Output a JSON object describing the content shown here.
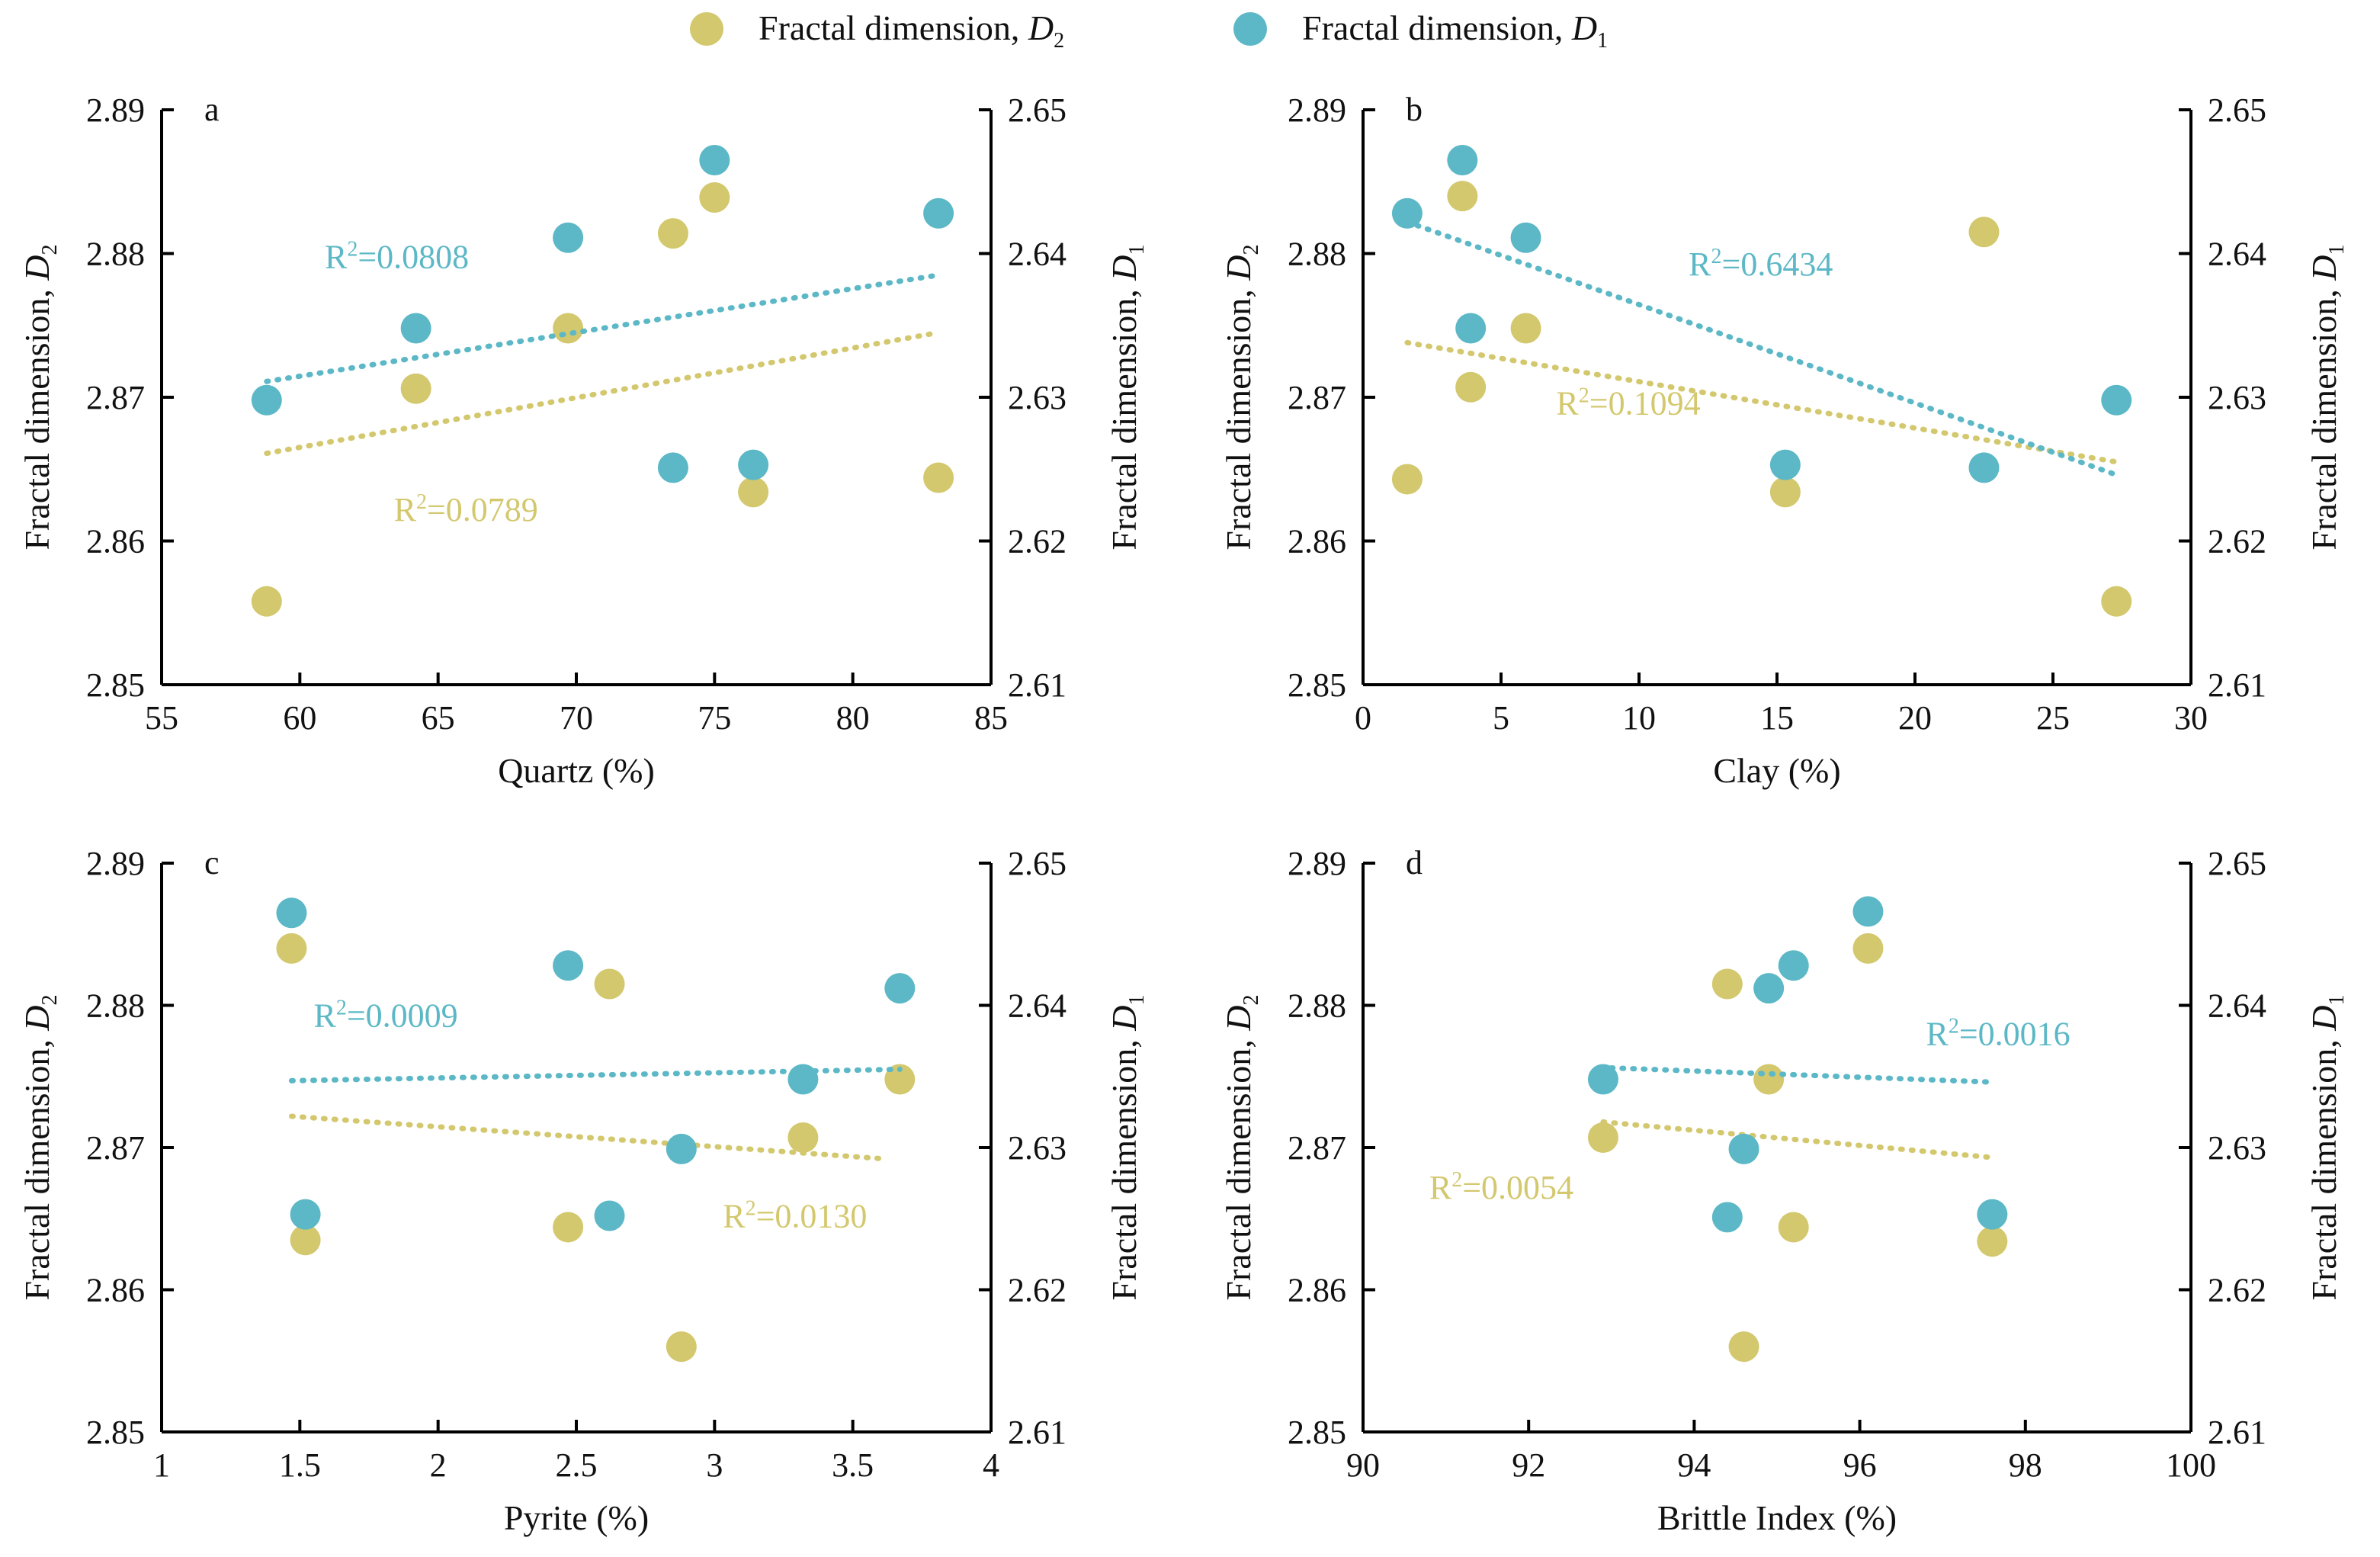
{
  "legend": [
    {
      "label": "Fractal dimension, ",
      "var": "D",
      "sub": "2",
      "color": "#d3c86e"
    },
    {
      "label": "Fractal dimension, ",
      "var": "D",
      "sub": "1",
      "color": "#5cb8c6"
    }
  ],
  "colors": {
    "d2": "#d3c86e",
    "d1": "#5cb8c6"
  },
  "chart_data": [
    {
      "type": "scatter",
      "panel": "a",
      "xlabel": "Quartz (%)",
      "ylabel_left": {
        "text": "Fractal dimension, ",
        "var": "D",
        "sub": "2"
      },
      "ylabel_right": {
        "text": "Fractal dimension, ",
        "var": "D",
        "sub": "1"
      },
      "xlim": [
        55,
        85
      ],
      "xticks": [
        55,
        60,
        65,
        70,
        75,
        80,
        85
      ],
      "ylim_left": [
        2.85,
        2.89
      ],
      "yticks_left": [
        "2.85",
        "2.86",
        "2.87",
        "2.88",
        "2.89"
      ],
      "ylim_right": [
        2.61,
        2.65
      ],
      "yticks_right": [
        "2.61",
        "2.62",
        "2.63",
        "2.64",
        "2.65"
      ],
      "series": [
        {
          "name": "D2",
          "axis": "left",
          "points": [
            [
              58.8,
              2.8558
            ],
            [
              64.2,
              2.8706
            ],
            [
              69.7,
              2.8748
            ],
            [
              73.5,
              2.8814
            ],
            [
              75.0,
              2.8839
            ],
            [
              76.4,
              2.8634
            ],
            [
              83.1,
              2.8644
            ]
          ],
          "trend": [
            [
              58.8,
              2.8661
            ],
            [
              83.1,
              2.8745
            ]
          ],
          "r2": {
            "label": "R",
            "sup": "2",
            "value": "=0.0789",
            "x": 63.4,
            "y": 2.8614
          }
        },
        {
          "name": "D1",
          "axis": "right",
          "points": [
            [
              58.8,
              2.6298
            ],
            [
              64.2,
              2.6348
            ],
            [
              69.7,
              2.6411
            ],
            [
              73.5,
              2.6251
            ],
            [
              75.0,
              2.6465
            ],
            [
              76.4,
              2.6253
            ],
            [
              83.1,
              2.6428
            ]
          ],
          "trend": [
            [
              58.8,
              2.6311
            ],
            [
              83.1,
              2.6385
            ]
          ],
          "r2": {
            "label": "R",
            "sup": "2",
            "value": "=0.0808",
            "x": 60.9,
            "y": 2.639
          }
        }
      ]
    },
    {
      "type": "scatter",
      "panel": "b",
      "xlabel": "Clay (%)",
      "ylabel_left": {
        "text": "Fractal dimension, ",
        "var": "D",
        "sub": "2"
      },
      "ylabel_right": {
        "text": "Fractal dimension, ",
        "var": "D",
        "sub": "1"
      },
      "xlim": [
        0,
        30
      ],
      "xticks": [
        0,
        5,
        10,
        15,
        20,
        25,
        30
      ],
      "ylim_left": [
        2.85,
        2.89
      ],
      "yticks_left": [
        "2.85",
        "2.86",
        "2.87",
        "2.88",
        "2.89"
      ],
      "ylim_right": [
        2.61,
        2.65
      ],
      "yticks_right": [
        "2.61",
        "2.62",
        "2.63",
        "2.64",
        "2.65"
      ],
      "series": [
        {
          "name": "D2",
          "axis": "left",
          "points": [
            [
              1.6,
              2.8643
            ],
            [
              3.6,
              2.884
            ],
            [
              3.9,
              2.8707
            ],
            [
              5.9,
              2.8748
            ],
            [
              15.3,
              2.8634
            ],
            [
              22.5,
              2.8815
            ],
            [
              27.3,
              2.8558
            ]
          ],
          "trend": [
            [
              1.6,
              2.8738
            ],
            [
              27.3,
              2.8655
            ]
          ],
          "r2": {
            "label": "R",
            "sup": "2",
            "value": "=0.1094",
            "x": 7.0,
            "y": 2.8688
          }
        },
        {
          "name": "D1",
          "axis": "right",
          "points": [
            [
              1.6,
              2.6428
            ],
            [
              3.6,
              2.6465
            ],
            [
              3.9,
              2.6348
            ],
            [
              5.9,
              2.6411
            ],
            [
              15.3,
              2.6253
            ],
            [
              22.5,
              2.6251
            ],
            [
              27.3,
              2.6298
            ]
          ],
          "trend": [
            [
              1.6,
              2.6422
            ],
            [
              27.3,
              2.6246
            ]
          ],
          "r2": {
            "label": "R",
            "sup": "2",
            "value": "=0.6434",
            "x": 11.8,
            "y": 2.6385
          }
        }
      ]
    },
    {
      "type": "scatter",
      "panel": "c",
      "xlabel": "Pyrite (%)",
      "ylabel_left": {
        "text": "Fractal dimension, ",
        "var": "D",
        "sub": "2"
      },
      "ylabel_right": {
        "text": "Fractal dimension, ",
        "var": "D",
        "sub": "1"
      },
      "xlim": [
        1,
        4
      ],
      "xticks": [
        "1",
        "1.5",
        "2",
        "2.5",
        "3",
        "3.5",
        "4"
      ],
      "ylim_left": [
        2.85,
        2.89
      ],
      "yticks_left": [
        "2.85",
        "2.86",
        "2.87",
        "2.88",
        "2.89"
      ],
      "ylim_right": [
        2.61,
        2.65
      ],
      "yticks_right": [
        "2.61",
        "2.62",
        "2.63",
        "2.64",
        "2.65"
      ],
      "series": [
        {
          "name": "D2",
          "axis": "left",
          "points": [
            [
              1.47,
              2.884
            ],
            [
              1.52,
              2.8635
            ],
            [
              2.47,
              2.8644
            ],
            [
              2.62,
              2.8815
            ],
            [
              2.88,
              2.856
            ],
            [
              3.32,
              2.8707
            ],
            [
              3.67,
              2.8748
            ]
          ],
          "trend": [
            [
              1.47,
              2.8722
            ],
            [
              3.62,
              2.8692
            ]
          ],
          "r2": {
            "label": "R",
            "sup": "2",
            "value": "=0.0130",
            "x": 3.03,
            "y": 2.8644
          }
        },
        {
          "name": "D1",
          "axis": "right",
          "points": [
            [
              1.47,
              2.6465
            ],
            [
              1.52,
              2.6253
            ],
            [
              2.47,
              2.6428
            ],
            [
              2.62,
              2.6252
            ],
            [
              2.88,
              2.6299
            ],
            [
              3.32,
              2.6348
            ],
            [
              3.67,
              2.6412
            ]
          ],
          "trend": [
            [
              1.47,
              2.6347
            ],
            [
              3.67,
              2.6355
            ]
          ],
          "r2": {
            "label": "R",
            "sup": "2",
            "value": "=0.0009",
            "x": 1.55,
            "y": 2.6385
          }
        }
      ]
    },
    {
      "type": "scatter",
      "panel": "d",
      "xlabel": "Brittle Index (%)",
      "ylabel_left": {
        "text": "Fractal dimension, ",
        "var": "D",
        "sub": "2"
      },
      "ylabel_right": {
        "text": "Fractal dimension, ",
        "var": "D",
        "sub": "1"
      },
      "xlim": [
        90,
        100
      ],
      "xticks": [
        90,
        92,
        94,
        96,
        98,
        100
      ],
      "ylim_left": [
        2.85,
        2.89
      ],
      "yticks_left": [
        "2.85",
        "2.86",
        "2.87",
        "2.88",
        "2.89"
      ],
      "ylim_right": [
        2.61,
        2.65
      ],
      "yticks_right": [
        "2.61",
        "2.62",
        "2.63",
        "2.64",
        "2.65"
      ],
      "series": [
        {
          "name": "D2",
          "axis": "left",
          "points": [
            [
              92.9,
              2.8707
            ],
            [
              94.4,
              2.8815
            ],
            [
              94.6,
              2.856
            ],
            [
              94.9,
              2.8748
            ],
            [
              95.2,
              2.8644
            ],
            [
              96.1,
              2.884
            ],
            [
              97.6,
              2.8634
            ]
          ],
          "trend": [
            [
              92.9,
              2.8718
            ],
            [
              97.6,
              2.8693
            ]
          ],
          "r2": {
            "label": "R",
            "sup": "2",
            "value": "=0.0054",
            "x": 90.8,
            "y": 2.8664
          }
        },
        {
          "name": "D1",
          "axis": "right",
          "points": [
            [
              92.9,
              2.6348
            ],
            [
              94.4,
              2.6251
            ],
            [
              94.6,
              2.6299
            ],
            [
              94.9,
              2.6412
            ],
            [
              95.2,
              2.6428
            ],
            [
              96.1,
              2.6466
            ],
            [
              97.6,
              2.6253
            ]
          ],
          "trend": [
            [
              93.0,
              2.6356
            ],
            [
              97.6,
              2.6346
            ]
          ],
          "r2": {
            "label": "R",
            "sup": "2",
            "value": "=0.0016",
            "x": 96.8,
            "y": 2.6372
          }
        }
      ]
    }
  ]
}
